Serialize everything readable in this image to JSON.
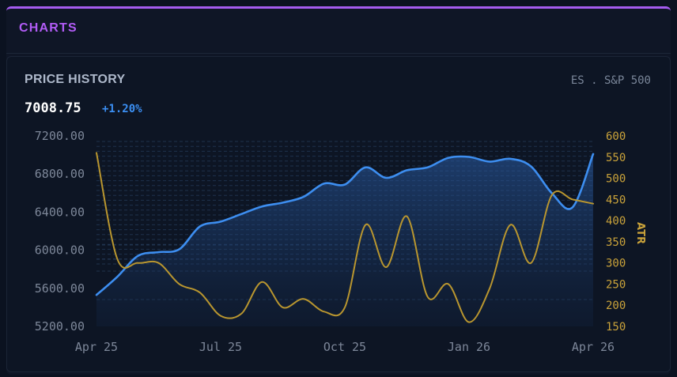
{
  "header": {
    "title": "CHARTS"
  },
  "card": {
    "title": "PRICE HISTORY",
    "ticker": "ES . S&P 500",
    "price": "7008.75",
    "change": "+1.20%"
  },
  "colors": {
    "price_line": "#3d8ef0",
    "atr_line": "#b9962f",
    "accent": "#a55cf0"
  },
  "chart_data": {
    "type": "line",
    "x_tick_labels": [
      "Apr 25",
      "Jul 25",
      "Oct 25",
      "Jan 26",
      "Apr 26"
    ],
    "x": [
      0,
      0.5,
      1,
      1.5,
      2,
      2.5,
      3,
      3.5,
      4,
      4.5,
      5,
      5.5,
      6,
      6.5,
      7,
      7.5,
      8,
      8.5,
      9,
      9.5,
      10,
      10.5,
      11,
      11.5,
      12
    ],
    "y_left_ticks": [
      "7200.00",
      "6800.00",
      "6400.00",
      "6000.00",
      "5600.00",
      "5200.00"
    ],
    "y_left_range": [
      5200,
      7200
    ],
    "y_right_ticks": [
      "600",
      "550",
      "500",
      "450",
      "400",
      "350",
      "300",
      "250",
      "200",
      "150"
    ],
    "y_right_range": [
      150,
      600
    ],
    "y_right_label": "ATR",
    "series": [
      {
        "axis": "left",
        "values": [
          5530,
          5720,
          5940,
          5980,
          6010,
          6250,
          6300,
          6380,
          6460,
          6500,
          6560,
          6700,
          6690,
          6870,
          6760,
          6840,
          6870,
          6970,
          6980,
          6930,
          6960,
          6880,
          6600,
          6450,
          7010
        ]
      },
      {
        "axis": "right",
        "values": [
          560,
          310,
          300,
          300,
          250,
          230,
          175,
          180,
          255,
          195,
          215,
          185,
          195,
          390,
          290,
          410,
          220,
          250,
          160,
          240,
          390,
          300,
          460,
          450,
          440
        ]
      }
    ],
    "grid": true,
    "area_fill": "left-series"
  }
}
